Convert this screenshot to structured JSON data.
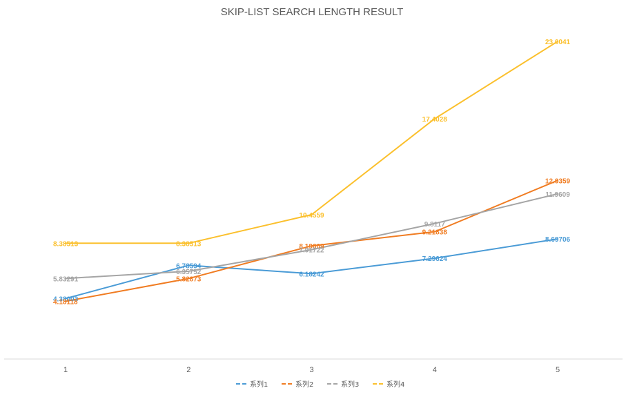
{
  "chart_data": {
    "type": "line",
    "title": "SKIP-LIST SEARCH LENGTH RESULT",
    "categories": [
      "1",
      "2",
      "3",
      "4",
      "5"
    ],
    "xlabel": "",
    "ylabel": "",
    "ylim": [
      0,
      25
    ],
    "grid": false,
    "legend_position": "bottom",
    "series": [
      {
        "name": "系列1",
        "color": "#4a9bd6",
        "values": [
          4.38003,
          6.78594,
          6.18242,
          7.29624,
          8.69706
        ],
        "labels": [
          "4.38003",
          "6.78594",
          "6.18242",
          "7.29624",
          "8.69706"
        ]
      },
      {
        "name": "系列2",
        "color": "#f07c22",
        "values": [
          4.18118,
          5.82873,
          8.19609,
          9.21838,
          12.9359
        ],
        "labels": [
          "4.18118",
          "5.82873",
          "8.19609",
          "9.21838",
          "12.9359"
        ]
      },
      {
        "name": "系列3",
        "color": "#a5a5a5",
        "values": [
          5.83291,
          6.35752,
          7.91722,
          9.8117,
          11.9609
        ],
        "labels": [
          "5.83291",
          "6.35752",
          "7.91722",
          "9.8117",
          "11.9609"
        ]
      },
      {
        "name": "系列4",
        "color": "#fbc02d",
        "values": [
          8.38513,
          8.38513,
          10.4559,
          17.4028,
          23.0041
        ],
        "labels": [
          "8.38513",
          "8.38513",
          "10.4559",
          "17.4028",
          "23.0041"
        ]
      }
    ]
  }
}
